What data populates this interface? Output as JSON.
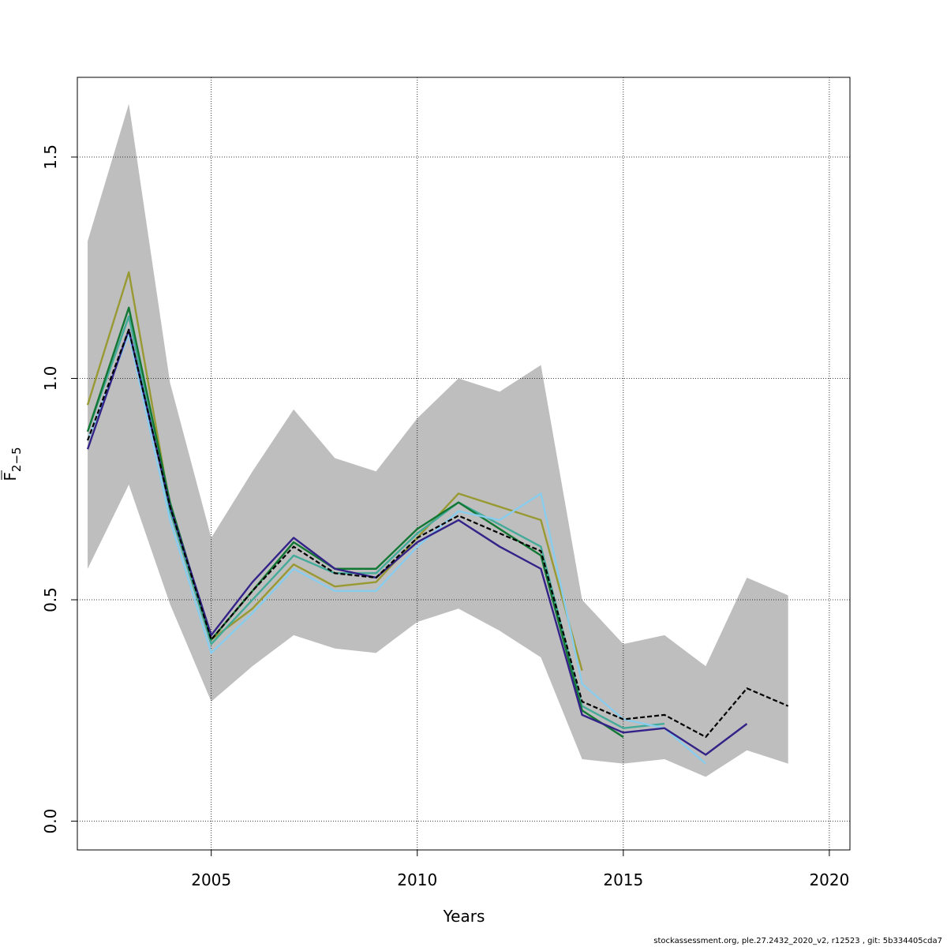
{
  "chart_data": {
    "type": "line",
    "xlabel": "Years",
    "ylabel": "F",
    "ylabel_subscript": "2−5",
    "xlim": [
      2001.75,
      2020.5
    ],
    "ylim": [
      -0.065,
      1.68
    ],
    "x_ticks": [
      2005,
      2010,
      2015,
      2020
    ],
    "y_ticks": [
      0.0,
      0.5,
      1.0,
      1.5
    ],
    "y_tick_labels": [
      "0.0",
      "0.5",
      "1.0",
      "1.5"
    ],
    "grid": true,
    "confidence_band": {
      "x": [
        2002,
        2003,
        2004,
        2005,
        2006,
        2007,
        2008,
        2009,
        2010,
        2011,
        2012,
        2013,
        2014,
        2015,
        2016,
        2017,
        2018,
        2019
      ],
      "lower": [
        0.57,
        0.76,
        0.49,
        0.27,
        0.35,
        0.42,
        0.39,
        0.38,
        0.45,
        0.48,
        0.43,
        0.37,
        0.14,
        0.13,
        0.14,
        0.1,
        0.16,
        0.13
      ],
      "upper": [
        1.31,
        1.62,
        0.99,
        0.64,
        0.79,
        0.93,
        0.82,
        0.79,
        0.91,
        1.0,
        0.97,
        1.03,
        0.5,
        0.4,
        0.42,
        0.35,
        0.55,
        0.51
      ],
      "color": "#bebebe"
    },
    "series": [
      {
        "color": "#b8860b",
        "values_x": [
          2002,
          2003,
          2004,
          2005,
          2006,
          2007,
          2008,
          2009,
          2010,
          2011,
          2012,
          2013,
          2014
        ],
        "values": [
          0.94,
          1.24,
          0.71,
          0.41,
          0.48,
          0.58,
          0.53,
          0.54,
          0.64,
          0.74,
          0.71,
          0.68,
          0.34
        ],
        "line_color": "#999933"
      },
      {
        "color": "#44aa99",
        "values_x": [
          2002,
          2003,
          2004,
          2005,
          2006,
          2007,
          2008,
          2009,
          2010,
          2011,
          2012,
          2013,
          2014,
          2015,
          2016
        ],
        "values": [
          0.88,
          1.14,
          0.7,
          0.4,
          0.5,
          0.6,
          0.56,
          0.56,
          0.65,
          0.72,
          0.67,
          0.62,
          0.26,
          0.21,
          0.22
        ],
        "line_color": "#44aa99"
      },
      {
        "color": "#117733",
        "values_x": [
          2002,
          2003,
          2004,
          2005,
          2006,
          2007,
          2008,
          2009,
          2010,
          2011,
          2012,
          2013,
          2014,
          2015
        ],
        "values": [
          0.88,
          1.16,
          0.72,
          0.41,
          0.52,
          0.63,
          0.57,
          0.57,
          0.66,
          0.72,
          0.66,
          0.6,
          0.25,
          0.19
        ],
        "line_color": "#117733"
      },
      {
        "color": "#88ccee",
        "values_x": [
          2002,
          2003,
          2004,
          2005,
          2006,
          2007,
          2008,
          2009,
          2010,
          2011,
          2012,
          2013,
          2014,
          2015,
          2016,
          2017
        ],
        "values": [
          0.86,
          1.1,
          0.68,
          0.38,
          0.47,
          0.57,
          0.52,
          0.52,
          0.62,
          0.7,
          0.68,
          0.74,
          0.31,
          0.23,
          0.21,
          0.13
        ],
        "line_color": "#88ccee"
      },
      {
        "color": "#332288",
        "values_x": [
          2002,
          2003,
          2004,
          2005,
          2006,
          2007,
          2008,
          2009,
          2010,
          2011,
          2012,
          2013,
          2014,
          2015,
          2016,
          2017,
          2018
        ],
        "values": [
          0.84,
          1.11,
          0.71,
          0.42,
          0.54,
          0.64,
          0.57,
          0.55,
          0.63,
          0.68,
          0.62,
          0.57,
          0.24,
          0.2,
          0.21,
          0.15,
          0.22
        ],
        "line_color": "#332288"
      },
      {
        "color": "#000000",
        "dashed": true,
        "values_x": [
          2002,
          2003,
          2004,
          2005,
          2006,
          2007,
          2008,
          2009,
          2010,
          2011,
          2012,
          2013,
          2014,
          2015,
          2016,
          2017,
          2018,
          2019
        ],
        "values": [
          0.86,
          1.11,
          0.71,
          0.41,
          0.52,
          0.62,
          0.56,
          0.55,
          0.64,
          0.69,
          0.65,
          0.61,
          0.27,
          0.23,
          0.24,
          0.19,
          0.3,
          0.26
        ],
        "line_color": "#000000"
      }
    ]
  },
  "footer": {
    "text": "stockassessment.org, ple.27.2432_2020_v2, r12523 , git: 5b334405cda7"
  }
}
